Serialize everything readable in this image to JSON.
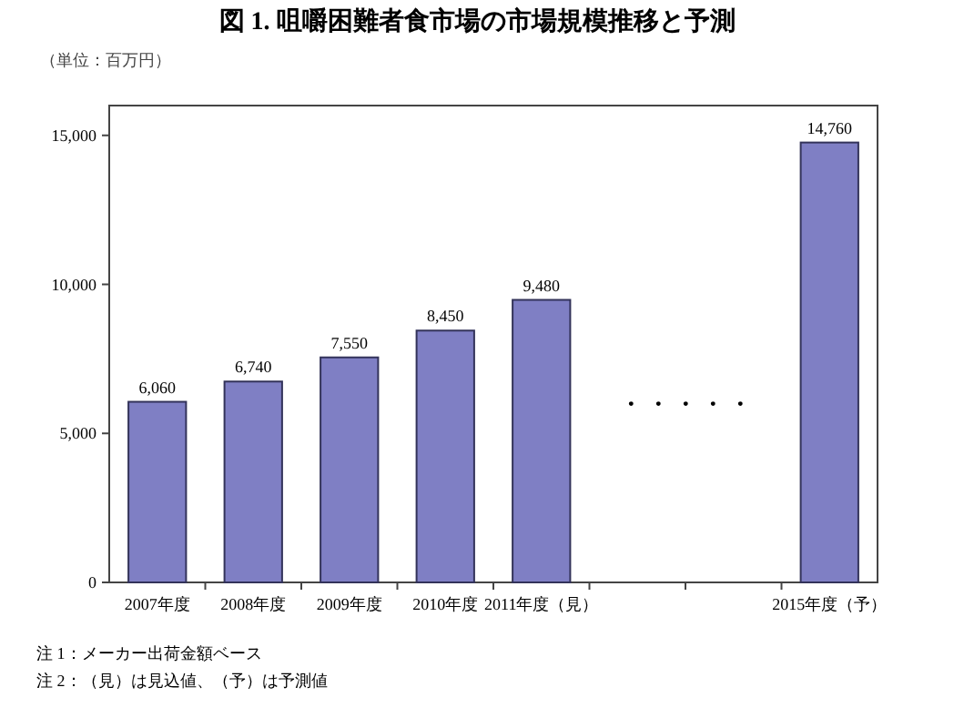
{
  "chart_data": {
    "type": "bar",
    "title": "図 1. 咀嚼困難者食市場の市場規模推移と予測",
    "ylabel": "（単位：百万円）",
    "categories": [
      "2007年度",
      "2008年度",
      "2009年度",
      "2010年度",
      "2011年度（見）",
      null,
      null,
      "2015年度（予）"
    ],
    "values": [
      6060,
      6740,
      7550,
      8450,
      9480,
      null,
      null,
      14760
    ],
    "value_labels": [
      "6,060",
      "6,740",
      "7,550",
      "8,450",
      "9,480",
      null,
      null,
      "14,760"
    ],
    "color": "#7f7fc4",
    "ylim": [
      0,
      16000
    ],
    "yticks": [
      0,
      {
        "value": 5000,
        "label": "5,000"
      },
      {
        "value": 10000,
        "label": "10,000"
      },
      {
        "value": 15000,
        "label": "15,000"
      }
    ],
    "grid": false,
    "annotations": [
      "・ ・ ・ ・ ・",
      "注 1：メーカー出荷金額ベース",
      "注 2：（見）は見込値、（予）は予測値"
    ]
  }
}
